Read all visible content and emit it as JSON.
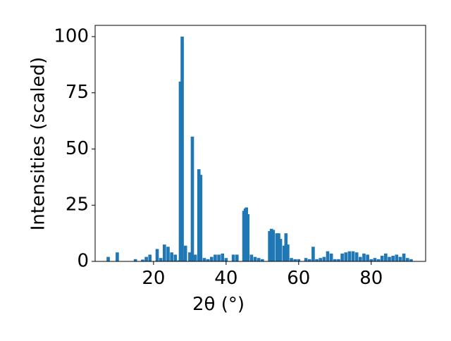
{
  "chart_data": {
    "type": "bar",
    "xlabel": "2θ (°)",
    "ylabel": "Intensities (scaled)",
    "color": "#1f77b4",
    "x": [
      7.5,
      10,
      15,
      17,
      18,
      19,
      21,
      22,
      23,
      24,
      25,
      26,
      27,
      28,
      27.4,
      27.9,
      28.8,
      30,
      30.7,
      31.5,
      32.5,
      33,
      34,
      35,
      36,
      37,
      38,
      39,
      40,
      42,
      43,
      44.9,
      45.3,
      45.6,
      46,
      47,
      48,
      49,
      50,
      52,
      52.5,
      53,
      54,
      54.5,
      55,
      56,
      56.5,
      57,
      58,
      59,
      60,
      62,
      63,
      64,
      65,
      66,
      67,
      68,
      69,
      70,
      71,
      72,
      73,
      74,
      75,
      76,
      77,
      78,
      79,
      80,
      81,
      82,
      83,
      84,
      85,
      86,
      87,
      88,
      89,
      90,
      91
    ],
    "values": [
      2,
      4,
      1,
      0.8,
      2,
      3,
      5.5,
      1.5,
      7.5,
      6.5,
      4,
      3,
      0.5,
      1,
      80,
      100,
      7,
      4,
      55.5,
      3,
      41,
      38.5,
      1.5,
      1,
      2,
      3,
      3,
      3.5,
      1.5,
      3,
      3,
      22.5,
      23.5,
      24,
      21,
      3,
      2,
      1.5,
      1,
      13.5,
      14.5,
      14,
      12.5,
      12.5,
      10,
      7,
      12.5,
      7.5,
      1.5,
      1,
      1,
      1.5,
      1,
      6.5,
      1,
      1.5,
      2,
      4.5,
      3.5,
      1,
      1,
      3.5,
      4,
      4.5,
      4.5,
      4,
      2,
      3.5,
      3,
      1,
      1.5,
      1,
      2.5,
      3.5,
      2,
      2.5,
      3,
      2,
      3.5,
      1.5,
      1
    ],
    "xlim": [
      3.9,
      95
    ],
    "ylim": [
      0,
      105
    ],
    "xticks": [
      20,
      40,
      60,
      80
    ],
    "yticks": [
      0,
      25,
      50,
      75,
      100
    ]
  }
}
